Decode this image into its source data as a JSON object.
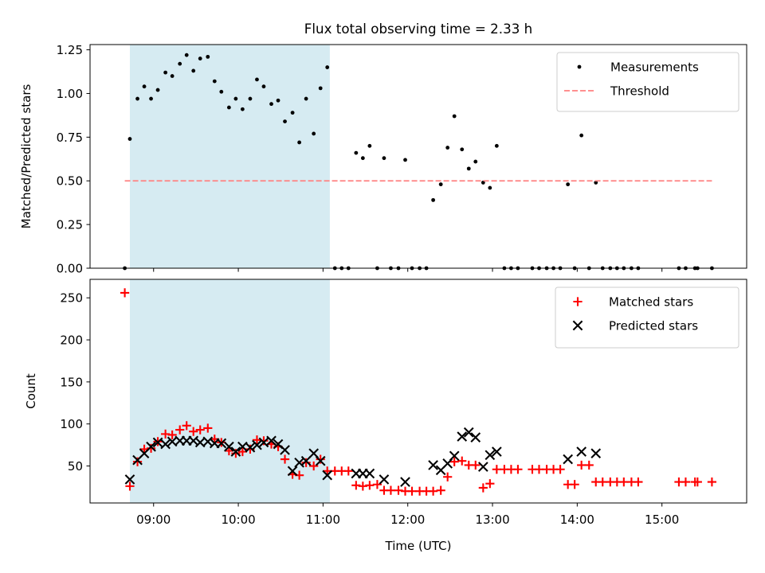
{
  "title": "Flux total observing time = 2.33 h",
  "chart_data": [
    {
      "type": "scatter",
      "ylabel": "Matched/Predicted stars",
      "ylim": [
        0,
        1.28
      ],
      "yticks": [
        0,
        0.25,
        0.5,
        0.75,
        1.0,
        1.25
      ],
      "ytick_labels": [
        "0.00",
        "0.25",
        "0.50",
        "0.75",
        "1.00",
        "1.25"
      ],
      "xlim": [
        8.25,
        16.0
      ],
      "highlight_span": {
        "x0": 8.72,
        "x1": 11.08,
        "color": "#add8e6",
        "alpha": 0.5
      },
      "legend_position": "upper right",
      "series": [
        {
          "name": "Measurements",
          "kind": "dot",
          "color": "#000000",
          "points": [
            [
              8.66,
              0
            ],
            [
              8.72,
              0.74
            ],
            [
              8.81,
              0.97
            ],
            [
              8.89,
              1.04
            ],
            [
              8.97,
              0.97
            ],
            [
              9.05,
              1.02
            ],
            [
              9.14,
              1.12
            ],
            [
              9.22,
              1.1
            ],
            [
              9.31,
              1.17
            ],
            [
              9.39,
              1.22
            ],
            [
              9.47,
              1.13
            ],
            [
              9.55,
              1.2
            ],
            [
              9.64,
              1.21
            ],
            [
              9.72,
              1.07
            ],
            [
              9.8,
              1.01
            ],
            [
              9.89,
              0.92
            ],
            [
              9.97,
              0.97
            ],
            [
              10.05,
              0.91
            ],
            [
              10.14,
              0.97
            ],
            [
              10.22,
              1.08
            ],
            [
              10.3,
              1.04
            ],
            [
              10.39,
              0.94
            ],
            [
              10.47,
              0.96
            ],
            [
              10.55,
              0.84
            ],
            [
              10.64,
              0.89
            ],
            [
              10.72,
              0.72
            ],
            [
              10.8,
              0.97
            ],
            [
              10.89,
              0.77
            ],
            [
              10.97,
              1.03
            ],
            [
              11.05,
              1.15
            ],
            [
              11.14,
              0
            ],
            [
              11.22,
              0
            ],
            [
              11.3,
              0
            ],
            [
              11.39,
              0.66
            ],
            [
              11.47,
              0.63
            ],
            [
              11.55,
              0.7
            ],
            [
              11.64,
              0
            ],
            [
              11.72,
              0.63
            ],
            [
              11.8,
              0
            ],
            [
              11.89,
              0
            ],
            [
              11.97,
              0.62
            ],
            [
              12.05,
              0
            ],
            [
              12.14,
              0
            ],
            [
              12.22,
              0
            ],
            [
              12.3,
              0.39
            ],
            [
              12.39,
              0.48
            ],
            [
              12.47,
              0.69
            ],
            [
              12.55,
              0.87
            ],
            [
              12.64,
              0.68
            ],
            [
              12.72,
              0.57
            ],
            [
              12.8,
              0.61
            ],
            [
              12.89,
              0.49
            ],
            [
              12.97,
              0.46
            ],
            [
              13.05,
              0.7
            ],
            [
              13.14,
              0
            ],
            [
              13.22,
              0
            ],
            [
              13.3,
              0
            ],
            [
              13.47,
              0
            ],
            [
              13.55,
              0
            ],
            [
              13.64,
              0
            ],
            [
              13.72,
              0
            ],
            [
              13.8,
              0
            ],
            [
              13.89,
              0.48
            ],
            [
              13.97,
              0
            ],
            [
              14.05,
              0.76
            ],
            [
              14.14,
              0
            ],
            [
              14.22,
              0.49
            ],
            [
              14.3,
              0
            ],
            [
              14.39,
              0
            ],
            [
              14.47,
              0
            ],
            [
              14.55,
              0
            ],
            [
              14.64,
              0
            ],
            [
              14.72,
              0
            ],
            [
              15.2,
              0
            ],
            [
              15.28,
              0
            ],
            [
              15.39,
              0
            ],
            [
              15.42,
              0
            ],
            [
              15.59,
              0
            ]
          ]
        },
        {
          "name": "Threshold",
          "kind": "dashed-line",
          "color": "#ff8080",
          "points": [
            [
              8.66,
              0.5
            ],
            [
              15.59,
              0.5
            ]
          ]
        }
      ]
    },
    {
      "type": "scatter",
      "ylabel": "Count",
      "xlabel": "Time (UTC)",
      "ylim": [
        6,
        272
      ],
      "yticks": [
        50,
        100,
        150,
        200,
        250
      ],
      "ytick_labels": [
        "50",
        "100",
        "150",
        "200",
        "250"
      ],
      "xlim": [
        8.25,
        16.0
      ],
      "xticks": [
        9,
        10,
        11,
        12,
        13,
        14,
        15
      ],
      "xtick_labels": [
        "09:00",
        "10:00",
        "11:00",
        "12:00",
        "13:00",
        "14:00",
        "15:00"
      ],
      "highlight_span": {
        "x0": 8.72,
        "x1": 11.08,
        "color": "#add8e6",
        "alpha": 0.5
      },
      "legend_position": "upper right",
      "series": [
        {
          "name": "Matched stars",
          "kind": "plus",
          "color": "#ff0000",
          "points": [
            [
              8.66,
              256
            ],
            [
              8.72,
              26
            ],
            [
              8.81,
              55
            ],
            [
              8.89,
              70
            ],
            [
              8.97,
              71
            ],
            [
              9.05,
              79
            ],
            [
              9.14,
              88
            ],
            [
              9.22,
              87
            ],
            [
              9.31,
              93
            ],
            [
              9.39,
              98
            ],
            [
              9.47,
              91
            ],
            [
              9.55,
              93
            ],
            [
              9.64,
              95
            ],
            [
              9.72,
              82
            ],
            [
              9.8,
              78
            ],
            [
              9.89,
              68
            ],
            [
              9.97,
              65
            ],
            [
              10.05,
              67
            ],
            [
              10.14,
              70
            ],
            [
              10.22,
              81
            ],
            [
              10.3,
              80
            ],
            [
              10.39,
              76
            ],
            [
              10.47,
              73
            ],
            [
              10.55,
              58
            ],
            [
              10.64,
              40
            ],
            [
              10.72,
              39
            ],
            [
              10.8,
              54
            ],
            [
              10.89,
              50
            ],
            [
              10.97,
              58
            ],
            [
              11.05,
              44
            ],
            [
              11.14,
              44
            ],
            [
              11.22,
              44
            ],
            [
              11.3,
              44
            ],
            [
              11.39,
              27
            ],
            [
              11.47,
              26
            ],
            [
              11.55,
              27
            ],
            [
              11.64,
              28
            ],
            [
              11.72,
              21
            ],
            [
              11.8,
              21
            ],
            [
              11.89,
              21
            ],
            [
              11.97,
              20
            ],
            [
              12.05,
              20
            ],
            [
              12.14,
              20
            ],
            [
              12.22,
              20
            ],
            [
              12.3,
              20
            ],
            [
              12.39,
              21
            ],
            [
              12.47,
              37
            ],
            [
              12.55,
              55
            ],
            [
              12.64,
              56
            ],
            [
              12.72,
              51
            ],
            [
              12.8,
              51
            ],
            [
              12.89,
              24
            ],
            [
              12.97,
              29
            ],
            [
              13.05,
              46
            ],
            [
              13.14,
              46
            ],
            [
              13.22,
              46
            ],
            [
              13.3,
              46
            ],
            [
              13.47,
              46
            ],
            [
              13.55,
              46
            ],
            [
              13.64,
              46
            ],
            [
              13.72,
              46
            ],
            [
              13.8,
              46
            ],
            [
              13.89,
              28
            ],
            [
              13.97,
              28
            ],
            [
              14.05,
              51
            ],
            [
              14.14,
              51
            ],
            [
              14.22,
              31
            ],
            [
              14.3,
              31
            ],
            [
              14.39,
              31
            ],
            [
              14.47,
              31
            ],
            [
              14.55,
              31
            ],
            [
              14.64,
              31
            ],
            [
              14.72,
              31
            ],
            [
              15.2,
              31
            ],
            [
              15.28,
              31
            ],
            [
              15.39,
              31
            ],
            [
              15.42,
              31
            ],
            [
              15.59,
              31
            ]
          ]
        },
        {
          "name": "Predicted stars",
          "kind": "cross",
          "color": "#000000",
          "points": [
            [
              8.72,
              34
            ],
            [
              8.81,
              57
            ],
            [
              8.89,
              65
            ],
            [
              8.97,
              73
            ],
            [
              9.05,
              78
            ],
            [
              9.14,
              76
            ],
            [
              9.22,
              79
            ],
            [
              9.31,
              80
            ],
            [
              9.39,
              80
            ],
            [
              9.47,
              80
            ],
            [
              9.55,
              78
            ],
            [
              9.64,
              79
            ],
            [
              9.72,
              77
            ],
            [
              9.8,
              77
            ],
            [
              9.89,
              73
            ],
            [
              9.97,
              67
            ],
            [
              10.05,
              73
            ],
            [
              10.14,
              72
            ],
            [
              10.22,
              75
            ],
            [
              10.3,
              78
            ],
            [
              10.39,
              80
            ],
            [
              10.47,
              76
            ],
            [
              10.55,
              69
            ],
            [
              10.64,
              44
            ],
            [
              10.72,
              54
            ],
            [
              10.8,
              56
            ],
            [
              10.89,
              65
            ],
            [
              10.97,
              56
            ],
            [
              11.05,
              39
            ],
            [
              11.39,
              41
            ],
            [
              11.47,
              41
            ],
            [
              11.55,
              41
            ],
            [
              11.72,
              34
            ],
            [
              11.97,
              31
            ],
            [
              12.3,
              51
            ],
            [
              12.39,
              45
            ],
            [
              12.47,
              53
            ],
            [
              12.55,
              62
            ],
            [
              12.64,
              85
            ],
            [
              12.72,
              90
            ],
            [
              12.8,
              84
            ],
            [
              12.89,
              49
            ],
            [
              12.97,
              63
            ],
            [
              13.05,
              67
            ],
            [
              13.89,
              58
            ],
            [
              14.05,
              67
            ],
            [
              14.22,
              65
            ]
          ]
        }
      ]
    }
  ]
}
